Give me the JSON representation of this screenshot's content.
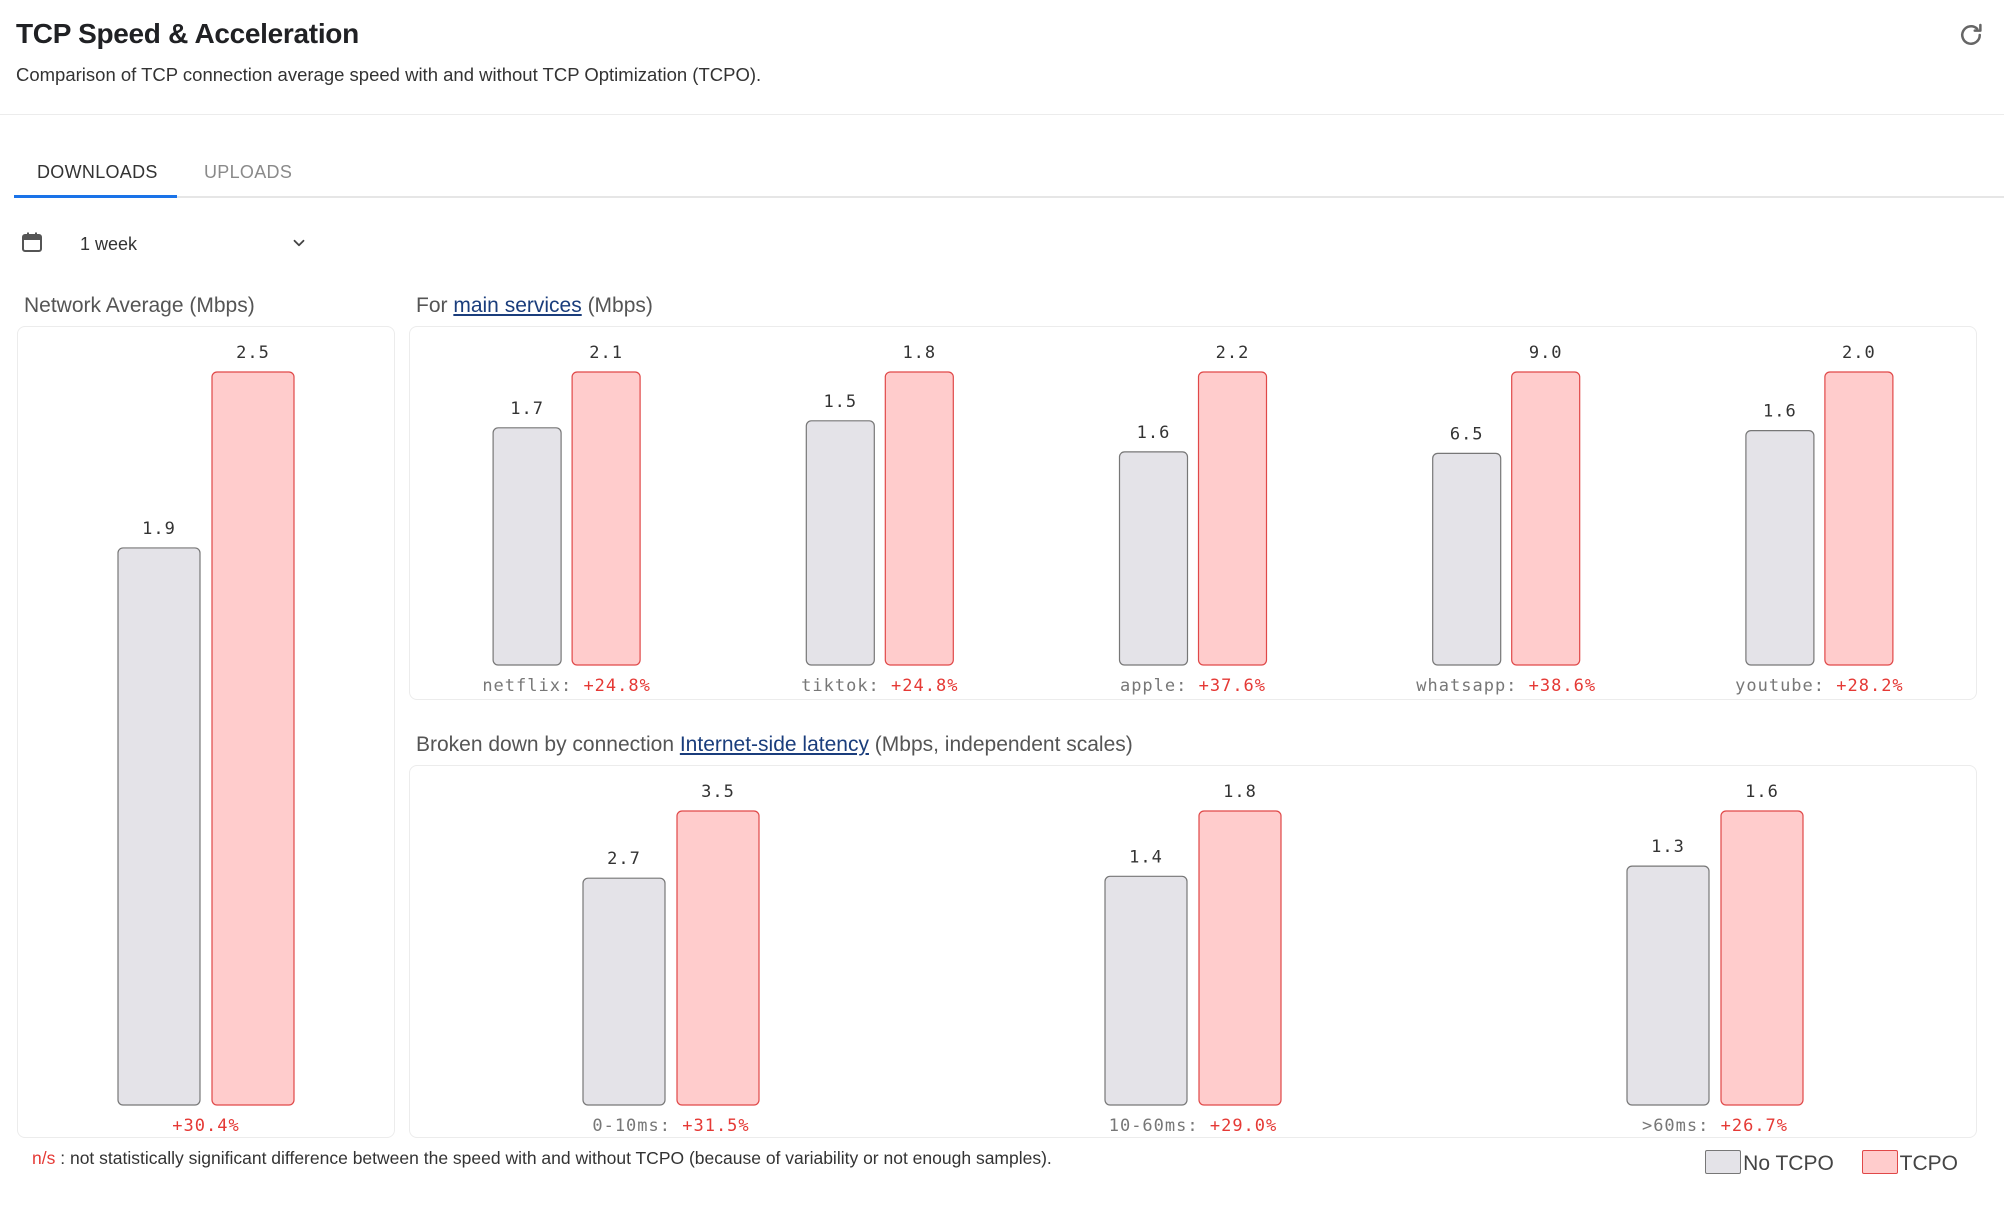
{
  "header": {
    "title": "TCP Speed & Acceleration",
    "subtitle": "Comparison of TCP connection average speed with and without TCP Optimization (TCPO)."
  },
  "tabs": [
    {
      "label": "DOWNLOADS",
      "active": true
    },
    {
      "label": "UPLOADS",
      "active": false
    }
  ],
  "period": {
    "value": "1 week"
  },
  "sections": {
    "network": {
      "title": "Network Average (Mbps)"
    },
    "services": {
      "prefix": "For",
      "link": "main services",
      "suffix": "(Mbps)"
    },
    "latency": {
      "prefix": "Broken down by connection",
      "link": "Internet-side latency",
      "suffix": "(Mbps, independent scales)"
    }
  },
  "footnote": {
    "ns_label": "n/s",
    "text": ": not statistically significant difference between the speed with and without TCPO (because of variability or not enough samples)."
  },
  "legend": [
    {
      "name": "No TCPO",
      "fill": "#e4e3e8",
      "stroke": "#777777"
    },
    {
      "name": "TCPO",
      "fill": "#ffcccc",
      "stroke": "#e04848"
    }
  ],
  "colors": {
    "positive_change": "#e53935",
    "category_label": "#777777",
    "value_label": "#333333"
  },
  "chart_data": [
    {
      "type": "bar",
      "title": "Network Average (Mbps)",
      "categories": [
        ""
      ],
      "series": [
        {
          "name": "No TCPO",
          "values": [
            1.9
          ]
        },
        {
          "name": "TCPO",
          "values": [
            2.5
          ]
        }
      ],
      "value_labels": [
        [
          "1.9",
          "2.5"
        ]
      ],
      "changes": [
        "+30.4%"
      ],
      "ylim": [
        0,
        2.5
      ]
    },
    {
      "type": "bar",
      "title": "For main services (Mbps)",
      "categories": [
        "netflix",
        "tiktok",
        "apple",
        "whatsapp",
        "youtube"
      ],
      "series": [
        {
          "name": "No TCPO",
          "values": [
            1.7,
            1.5,
            1.6,
            6.5,
            1.6
          ]
        },
        {
          "name": "TCPO",
          "values": [
            2.1,
            1.8,
            2.2,
            9.0,
            2.0
          ]
        }
      ],
      "value_labels": [
        [
          "1.7",
          "2.1"
        ],
        [
          "1.5",
          "1.8"
        ],
        [
          "1.6",
          "2.2"
        ],
        [
          "6.5",
          "9.0"
        ],
        [
          "1.6",
          "2.0"
        ]
      ],
      "changes": [
        "+24.8%",
        "+24.8%",
        "+37.6%",
        "+38.6%",
        "+28.2%"
      ],
      "scale": "independent"
    },
    {
      "type": "bar",
      "title": "Broken down by connection Internet-side latency (Mbps, independent scales)",
      "categories": [
        "0-10ms",
        "10-60ms",
        ">60ms"
      ],
      "series": [
        {
          "name": "No TCPO",
          "values": [
            2.7,
            1.4,
            1.3
          ]
        },
        {
          "name": "TCPO",
          "values": [
            3.5,
            1.8,
            1.6
          ]
        }
      ],
      "value_labels": [
        [
          "2.7",
          "3.5"
        ],
        [
          "1.4",
          "1.8"
        ],
        [
          "1.3",
          "1.6"
        ]
      ],
      "changes": [
        "+31.5%",
        "+29.0%",
        "+26.7%"
      ],
      "scale": "independent"
    }
  ]
}
